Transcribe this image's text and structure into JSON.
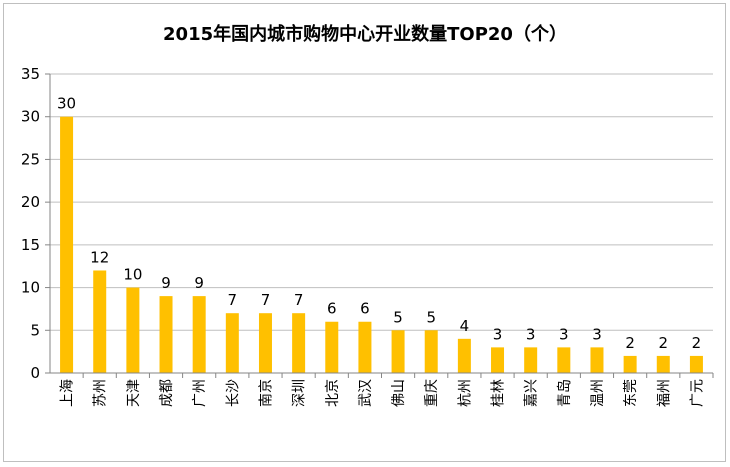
{
  "chart_data": {
    "type": "bar",
    "title": "2015年国内城市购物中心开业数量TOP20（个）",
    "categories": [
      "上海",
      "苏州",
      "天津",
      "成都",
      "广州",
      "长沙",
      "南京",
      "深圳",
      "北京",
      "武汉",
      "佛山",
      "重庆",
      "杭州",
      "桂林",
      "嘉兴",
      "青岛",
      "温州",
      "东莞",
      "福州",
      "广元"
    ],
    "values": [
      30,
      12,
      10,
      9,
      9,
      7,
      7,
      7,
      6,
      6,
      5,
      5,
      4,
      3,
      3,
      3,
      3,
      2,
      2,
      2
    ],
    "ylim": [
      0,
      35
    ],
    "yticks": [
      0,
      5,
      10,
      15,
      20,
      25,
      30,
      35
    ],
    "grid": true,
    "bar_color": "#FFC000",
    "data_labels": true
  }
}
